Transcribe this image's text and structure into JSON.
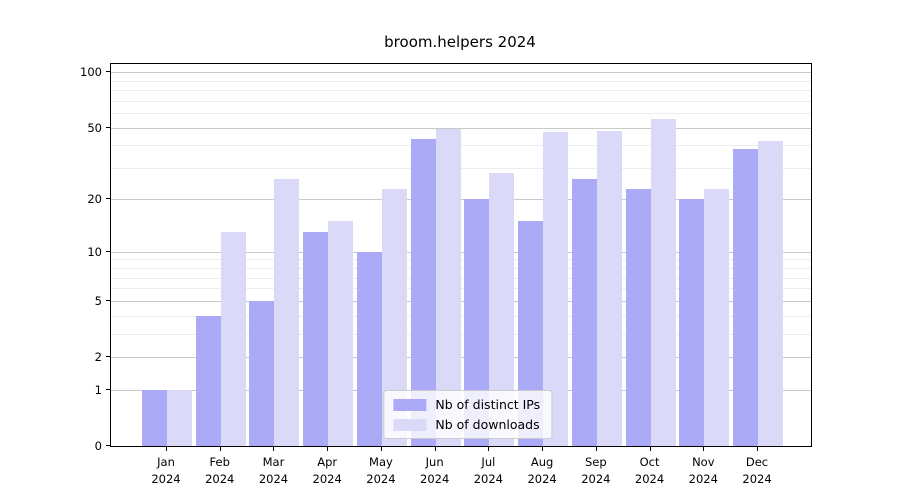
{
  "title": "broom.helpers 2024",
  "chart_data": {
    "type": "bar",
    "title": "broom.helpers 2024",
    "categories": [
      "Jan",
      "Feb",
      "Mar",
      "Apr",
      "May",
      "Jun",
      "Jul",
      "Aug",
      "Sep",
      "Oct",
      "Nov",
      "Dec"
    ],
    "x_year": "2024",
    "series": [
      {
        "name": "Nb of distinct IPs",
        "color": "#aaaaf6",
        "values": [
          1,
          4,
          5,
          13,
          10,
          43,
          20,
          15,
          26,
          23,
          20,
          38
        ]
      },
      {
        "name": "Nb of downloads",
        "color": "#dadaf8",
        "values": [
          1,
          13,
          26,
          15,
          23,
          49,
          28,
          47,
          48,
          56,
          23,
          42
        ]
      }
    ],
    "yscale": "log1p",
    "ylim": [
      0,
      111
    ],
    "y_major_ticks": [
      0,
      1,
      2,
      5,
      10,
      20,
      50,
      100
    ],
    "y_minor_ticks": [
      3,
      4,
      6,
      7,
      8,
      9,
      30,
      40,
      60,
      70,
      80,
      90
    ],
    "grid": true,
    "legend_position": "lower center",
    "axis_color": "#000000",
    "major_grid_color": "#c9c9c9",
    "minor_grid_color": "#ededed"
  }
}
